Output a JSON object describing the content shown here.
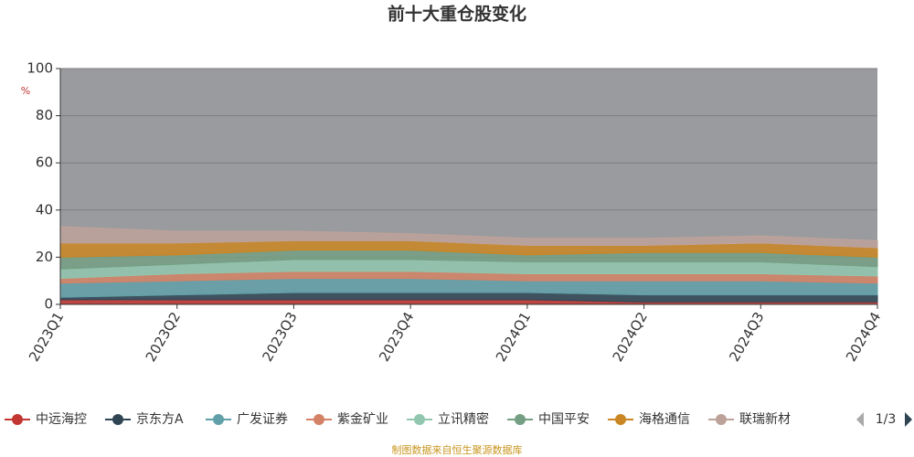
{
  "chart_data": {
    "type": "stacked_area",
    "title": "前十大重仓股变化",
    "y_label": "%",
    "categories": [
      "2023Q1",
      "2023Q2",
      "2023Q3",
      "2023Q4",
      "2024Q1",
      "2024Q2",
      "2024Q3",
      "2024Q4"
    ],
    "ylim": [
      0,
      100
    ],
    "yticks": [
      0,
      20,
      40,
      60,
      80,
      100
    ],
    "grid": true,
    "series": [
      {
        "name": "中远海控",
        "color": "#c23531",
        "values": [
          2,
          2,
          2,
          2,
          2,
          1,
          1,
          1
        ]
      },
      {
        "name": "京东方A",
        "color": "#2f4554",
        "values": [
          1,
          2,
          3,
          3,
          3,
          3,
          3,
          3
        ]
      },
      {
        "name": "广发证券",
        "color": "#61a0a8",
        "values": [
          6,
          6,
          6,
          6,
          5,
          6,
          6,
          5
        ]
      },
      {
        "name": "紫金矿业",
        "color": "#d48265",
        "values": [
          2,
          3,
          3,
          3,
          3,
          3,
          3,
          3
        ]
      },
      {
        "name": "立讯精密",
        "color": "#91c7ae",
        "values": [
          4,
          4,
          5,
          5,
          5,
          5,
          5,
          4
        ]
      },
      {
        "name": "中国平安",
        "color": "#749f83",
        "values": [
          5,
          4,
          4,
          4,
          3,
          4,
          4,
          4
        ]
      },
      {
        "name": "海格通信",
        "color": "#ca8622",
        "values": [
          6,
          5,
          4,
          4,
          4,
          3,
          4,
          4
        ]
      },
      {
        "name": "联瑞新材",
        "color": "#bda29a",
        "values": [
          7,
          5,
          4,
          3,
          3,
          3,
          3,
          3
        ]
      }
    ],
    "legend_page": "1/3",
    "source": "制图数据来自恒生聚源数据库"
  }
}
